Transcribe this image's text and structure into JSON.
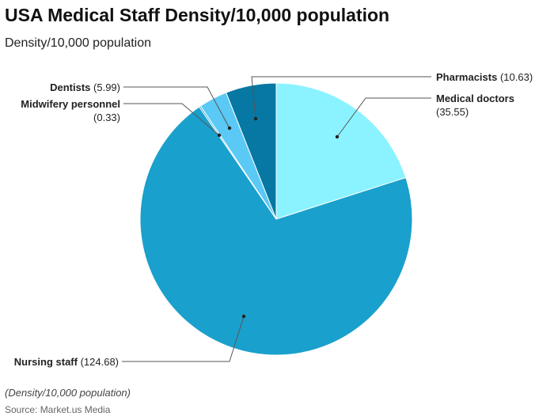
{
  "title": "USA Medical Staff Density/10,000 population",
  "subtitle": "Density/10,000 population",
  "chart_data": {
    "type": "pie",
    "categories": [
      "Medical doctors",
      "Nursing staff",
      "Midwifery personnel",
      "Dentists",
      "Pharmacists"
    ],
    "values": [
      35.55,
      124.68,
      0.33,
      5.99,
      10.63
    ],
    "value_labels": [
      "(35.55)",
      "(124.68)",
      "(0.33)",
      "(5.99)",
      "(10.63)"
    ],
    "colors": [
      "#8AF3FF",
      "#1AA0CC",
      "#2E9FCB",
      "#5BC9F5",
      "#0778A3"
    ],
    "start": "top",
    "direction": "clockwise"
  },
  "footnote": "(Density/10,000 population)",
  "source": "Source: Market.us Media"
}
